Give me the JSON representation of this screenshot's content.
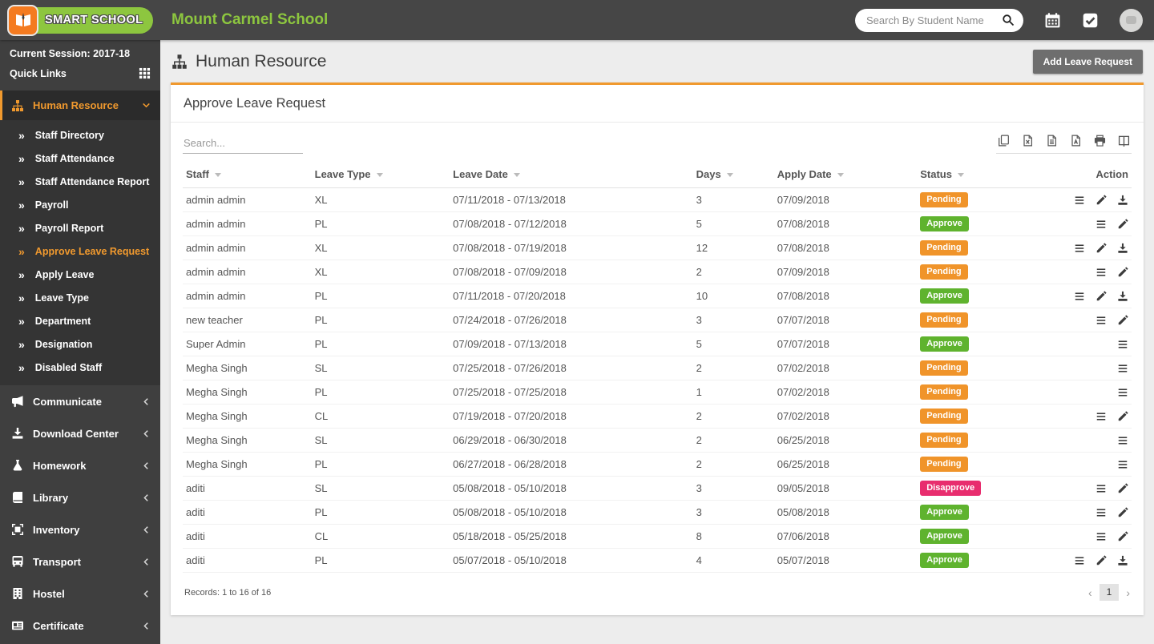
{
  "colors": {
    "accent_orange": "#f0992e",
    "brand_green": "#8dc63f",
    "badge_pending": "#f0942a",
    "badge_approve": "#5fb32e",
    "badge_disapprove": "#e82d6e",
    "button_gray": "#6e6e6e"
  },
  "header": {
    "logo_text": "SMART SCHOOL",
    "school_name": "Mount Carmel School",
    "search_placeholder": "Search By Student Name"
  },
  "sidebar": {
    "session_label": "Current Session: 2017-18",
    "quick_links_label": "Quick Links",
    "menu": [
      {
        "label": "Human Resource",
        "icon": "sitemap",
        "active": true,
        "expanded": true,
        "children": [
          {
            "label": "Staff Directory"
          },
          {
            "label": "Staff Attendance"
          },
          {
            "label": "Staff Attendance Report"
          },
          {
            "label": "Payroll"
          },
          {
            "label": "Payroll Report"
          },
          {
            "label": "Approve Leave Request",
            "active": true
          },
          {
            "label": "Apply Leave"
          },
          {
            "label": "Leave Type"
          },
          {
            "label": "Department"
          },
          {
            "label": "Designation"
          },
          {
            "label": "Disabled Staff"
          }
        ]
      },
      {
        "label": "Communicate",
        "icon": "megaphone"
      },
      {
        "label": "Download Center",
        "icon": "download"
      },
      {
        "label": "Homework",
        "icon": "flask"
      },
      {
        "label": "Library",
        "icon": "book"
      },
      {
        "label": "Inventory",
        "icon": "box"
      },
      {
        "label": "Transport",
        "icon": "bus"
      },
      {
        "label": "Hostel",
        "icon": "building"
      },
      {
        "label": "Certificate",
        "icon": "idcard"
      }
    ]
  },
  "page": {
    "title": "Human Resource",
    "add_button_label": "Add Leave Request"
  },
  "panel": {
    "title": "Approve Leave Request",
    "search_placeholder": "Search...",
    "export_icons": [
      "copy",
      "excel",
      "csv",
      "pdf",
      "print",
      "columns"
    ],
    "columns": [
      {
        "label": "Staff",
        "sortable": true
      },
      {
        "label": "Leave Type",
        "sortable": true
      },
      {
        "label": "Leave Date",
        "sortable": true
      },
      {
        "label": "Days",
        "sortable": true
      },
      {
        "label": "Apply Date",
        "sortable": true
      },
      {
        "label": "Status",
        "sortable": true
      },
      {
        "label": "Action",
        "sortable": false
      }
    ],
    "rows": [
      {
        "staff": "admin admin",
        "leave_type": "XL",
        "leave_date": "07/11/2018 - 07/13/2018",
        "days": "3",
        "apply_date": "07/09/2018",
        "status": "Pending",
        "actions": [
          "details",
          "edit",
          "download"
        ]
      },
      {
        "staff": "admin admin",
        "leave_type": "PL",
        "leave_date": "07/08/2018 - 07/12/2018",
        "days": "5",
        "apply_date": "07/08/2018",
        "status": "Approve",
        "actions": [
          "details",
          "edit"
        ]
      },
      {
        "staff": "admin admin",
        "leave_type": "XL",
        "leave_date": "07/08/2018 - 07/19/2018",
        "days": "12",
        "apply_date": "07/08/2018",
        "status": "Pending",
        "actions": [
          "details",
          "edit",
          "download"
        ]
      },
      {
        "staff": "admin admin",
        "leave_type": "XL",
        "leave_date": "07/08/2018 - 07/09/2018",
        "days": "2",
        "apply_date": "07/09/2018",
        "status": "Pending",
        "actions": [
          "details",
          "edit"
        ]
      },
      {
        "staff": "admin admin",
        "leave_type": "PL",
        "leave_date": "07/11/2018 - 07/20/2018",
        "days": "10",
        "apply_date": "07/08/2018",
        "status": "Approve",
        "actions": [
          "details",
          "edit",
          "download"
        ]
      },
      {
        "staff": "new teacher",
        "leave_type": "PL",
        "leave_date": "07/24/2018 - 07/26/2018",
        "days": "3",
        "apply_date": "07/07/2018",
        "status": "Pending",
        "actions": [
          "details",
          "edit"
        ]
      },
      {
        "staff": "Super Admin",
        "leave_type": "PL",
        "leave_date": "07/09/2018 - 07/13/2018",
        "days": "5",
        "apply_date": "07/07/2018",
        "status": "Approve",
        "actions": [
          "details"
        ]
      },
      {
        "staff": "Megha Singh",
        "leave_type": "SL",
        "leave_date": "07/25/2018 - 07/26/2018",
        "days": "2",
        "apply_date": "07/02/2018",
        "status": "Pending",
        "actions": [
          "details"
        ]
      },
      {
        "staff": "Megha Singh",
        "leave_type": "PL",
        "leave_date": "07/25/2018 - 07/25/2018",
        "days": "1",
        "apply_date": "07/02/2018",
        "status": "Pending",
        "actions": [
          "details"
        ]
      },
      {
        "staff": "Megha Singh",
        "leave_type": "CL",
        "leave_date": "07/19/2018 - 07/20/2018",
        "days": "2",
        "apply_date": "07/02/2018",
        "status": "Pending",
        "actions": [
          "details",
          "edit"
        ]
      },
      {
        "staff": "Megha Singh",
        "leave_type": "SL",
        "leave_date": "06/29/2018 - 06/30/2018",
        "days": "2",
        "apply_date": "06/25/2018",
        "status": "Pending",
        "actions": [
          "details"
        ]
      },
      {
        "staff": "Megha Singh",
        "leave_type": "PL",
        "leave_date": "06/27/2018 - 06/28/2018",
        "days": "2",
        "apply_date": "06/25/2018",
        "status": "Pending",
        "actions": [
          "details"
        ]
      },
      {
        "staff": "aditi",
        "leave_type": "SL",
        "leave_date": "05/08/2018 - 05/10/2018",
        "days": "3",
        "apply_date": "09/05/2018",
        "status": "Disapprove",
        "actions": [
          "details",
          "edit"
        ]
      },
      {
        "staff": "aditi",
        "leave_type": "PL",
        "leave_date": "05/08/2018 - 05/10/2018",
        "days": "3",
        "apply_date": "05/08/2018",
        "status": "Approve",
        "actions": [
          "details",
          "edit"
        ]
      },
      {
        "staff": "aditi",
        "leave_type": "CL",
        "leave_date": "05/18/2018 - 05/25/2018",
        "days": "8",
        "apply_date": "07/06/2018",
        "status": "Approve",
        "actions": [
          "details",
          "edit"
        ]
      },
      {
        "staff": "aditi",
        "leave_type": "PL",
        "leave_date": "05/07/2018 - 05/10/2018",
        "days": "4",
        "apply_date": "05/07/2018",
        "status": "Approve",
        "actions": [
          "details",
          "edit",
          "download"
        ]
      }
    ],
    "records_text": "Records: 1 to 16 of 16",
    "pagination": {
      "prev": "‹",
      "page": "1",
      "next": "›"
    }
  }
}
